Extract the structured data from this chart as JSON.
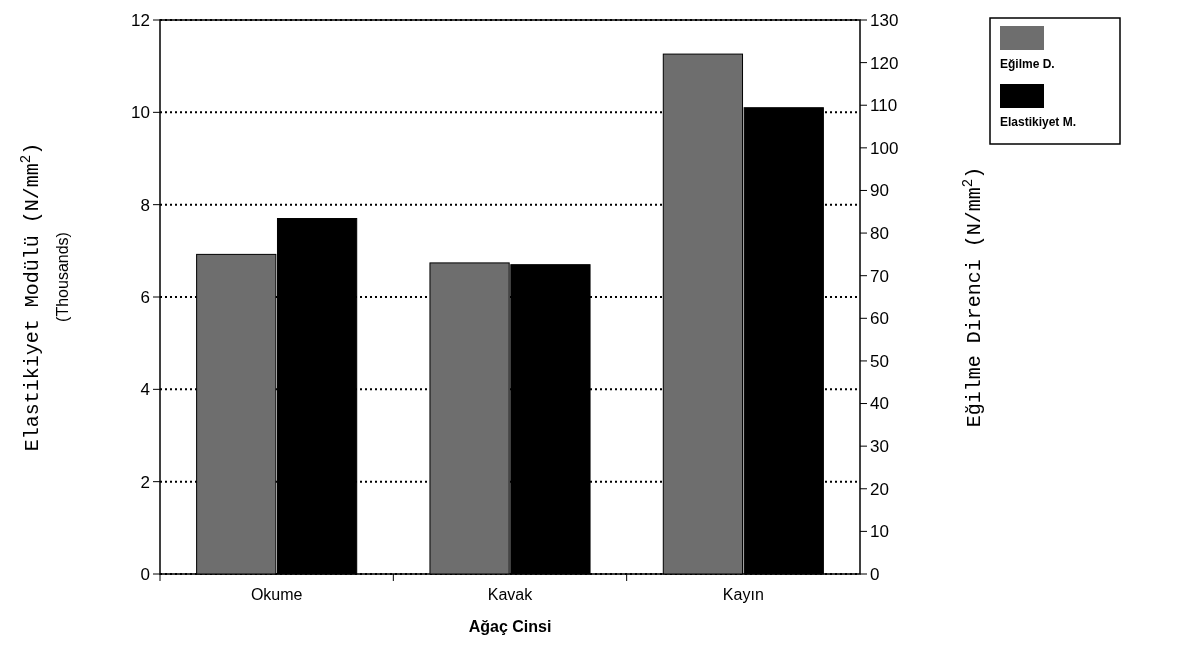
{
  "chart_data": {
    "type": "bar",
    "categories": [
      "Okume",
      "Kavak",
      "Kayın"
    ],
    "series": [
      {
        "name": "Eğilme D.",
        "color": "#6e6e6e",
        "values": [
          75,
          73,
          122
        ],
        "axis": "y2"
      },
      {
        "name": "Elastikiyet M.",
        "color": "#000000",
        "values": [
          7.7,
          6.7,
          10.1
        ]
      }
    ],
    "xlabel": "Ağaç Cinsi",
    "ylabel": "Elastikiyet Modülü (N/mm$^{2}$)",
    "y2label": "Eğilme Direnci (N/mm$^{2}$)",
    "annotations": [
      "(Thousands)"
    ],
    "ylim": [
      0,
      12
    ],
    "yticks": [
      0,
      2,
      4,
      6,
      8,
      10,
      12
    ],
    "y2lim": [
      0,
      130
    ],
    "y2ticks": [
      0,
      10,
      20,
      30,
      40,
      50,
      60,
      70,
      80,
      90,
      100,
      110,
      120,
      130
    ],
    "grid": "y",
    "legend": "top right"
  }
}
